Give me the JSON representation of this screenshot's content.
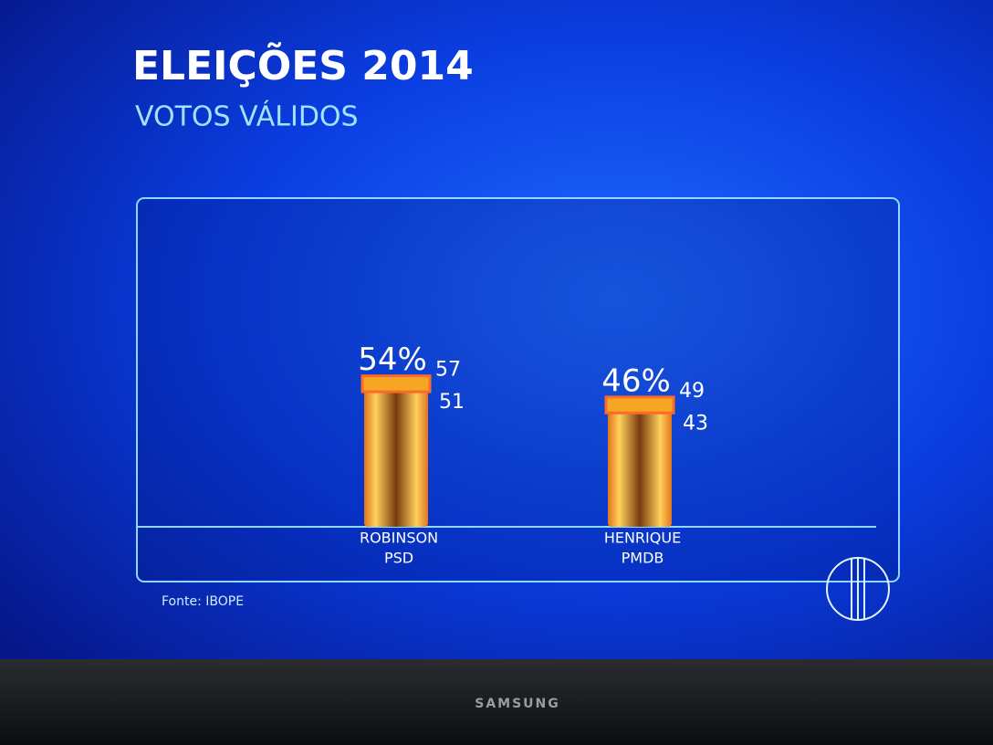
{
  "chart_data": {
    "type": "bar",
    "title": "ELEIÇÕES 2014",
    "subtitle": "VOTOS VÁLIDOS",
    "categories": [
      "ROBINSON",
      "HENRIQUE"
    ],
    "parties": [
      "PSD",
      "PMDB"
    ],
    "values": [
      54,
      46
    ],
    "value_labels": [
      "54%",
      "46%"
    ],
    "high": [
      57,
      49
    ],
    "low": [
      51,
      43
    ],
    "color": "#f5a623",
    "source": "Fonte: IBOPE"
  },
  "device": {
    "brand": "SAMSUNG"
  }
}
